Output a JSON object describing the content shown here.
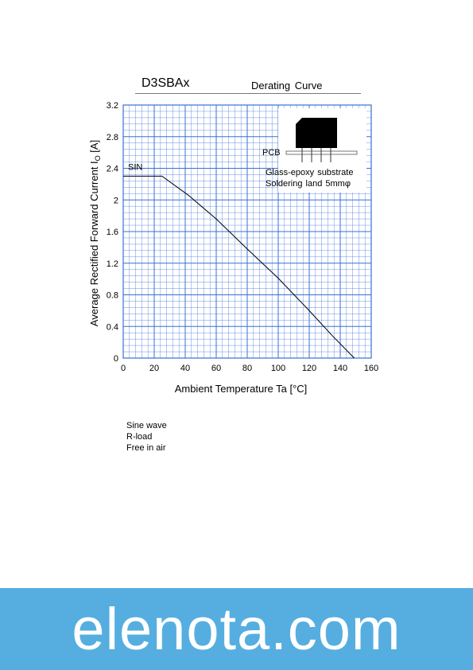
{
  "chart_data": {
    "type": "line",
    "title": "D3SBAx",
    "subtitle": "Derating Curve",
    "xlabel": "Ambient Temperature  Ta  [°C]",
    "ylabel": "Average Rectified Forward Current  I",
    "ylabel_sub": "O",
    "ylabel_unit": "  [A]",
    "xlim": [
      0,
      160
    ],
    "ylim": [
      0,
      3.2
    ],
    "xticks": [
      0,
      20,
      40,
      60,
      80,
      100,
      120,
      140,
      160
    ],
    "yticks": [
      0,
      0.4,
      0.8,
      1.2,
      1.6,
      2,
      2.4,
      2.8,
      3.2
    ],
    "xtick_labels": [
      "0",
      "20",
      "40",
      "60",
      "80",
      "100",
      "120",
      "140",
      "160"
    ],
    "ytick_labels": [
      "0",
      "0.4",
      "0.8",
      "1.2",
      "1.6",
      "2",
      "2.4",
      "2.8",
      "3.2"
    ],
    "grid": true,
    "grid_color": "#3a6fd8",
    "series": [
      {
        "name": "SIN",
        "x": [
          0,
          25,
          42,
          60,
          80,
          100,
          120,
          135,
          149
        ],
        "y": [
          2.3,
          2.3,
          2.06,
          1.76,
          1.38,
          1.01,
          0.6,
          0.28,
          0.0
        ]
      }
    ],
    "inset": {
      "pcb_label": "PCB",
      "line1": "Glass-epoxy  substrate",
      "line2": "Soldering  land  5mmφ"
    }
  },
  "notes": [
    "Sine wave",
    "R-load",
    "Free in air"
  ],
  "footer": {
    "text": "elenota.com",
    "color": "#56aee0"
  }
}
